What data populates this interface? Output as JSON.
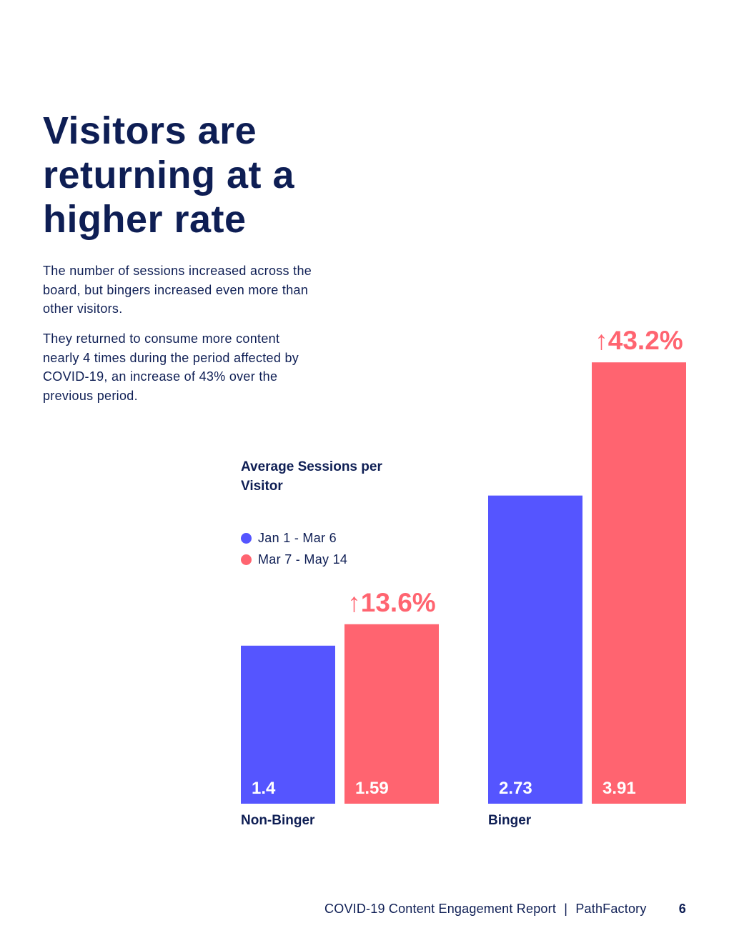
{
  "page": {
    "title": "Visitors are returning at a higher rate",
    "paragraphs": [
      "The number of sessions increased across the board, but bingers increased even more than other visitors.",
      "They returned to consume more content nearly 4 times during the period affected by COVID-19, an increase of 43% over the previous period."
    ],
    "footer": {
      "report": "COVID-19 Content Engagement Report",
      "separator": "|",
      "company": "PathFactory",
      "page_number": "6"
    }
  },
  "chart_data": {
    "type": "bar",
    "title": "Average Sessions per Visitor",
    "categories": [
      "Non-Binger",
      "Binger"
    ],
    "series": [
      {
        "name": "Jan 1 - Mar 6",
        "color": "#5555ff",
        "values": [
          1.4,
          2.73
        ],
        "labels": [
          "1.4",
          "2.73"
        ]
      },
      {
        "name": "Mar 7 - May 14",
        "color": "#ff6470",
        "values": [
          1.59,
          3.91
        ],
        "labels": [
          "1.59",
          "3.91"
        ]
      }
    ],
    "annotations": [
      "↑13.6%",
      "↑43.2%"
    ],
    "ylim": [
      0,
      4
    ],
    "grid": false,
    "legend": "top-left"
  }
}
